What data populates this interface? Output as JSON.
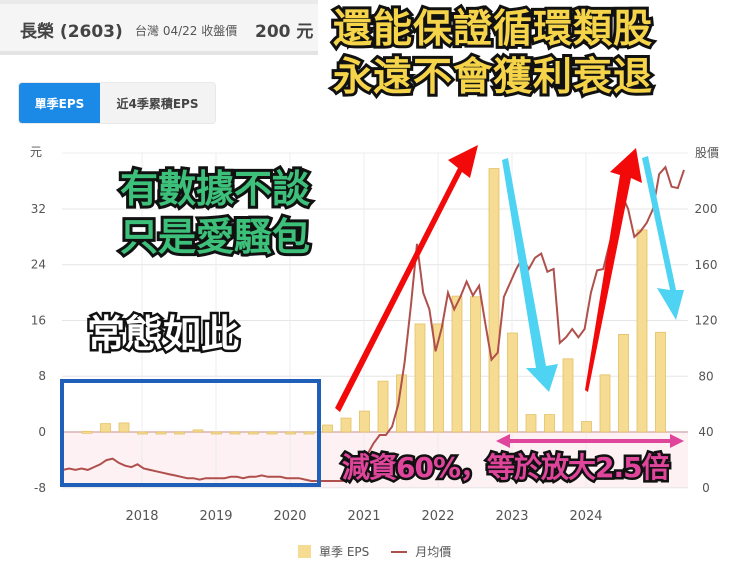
{
  "header": {
    "stock_name": "長榮 (2603)",
    "market_date_label": "台灣 04/22 收盤價",
    "close_price": "200 元"
  },
  "tabs": [
    {
      "label": "單季EPS",
      "active": true
    },
    {
      "label": "近4季累積EPS",
      "active": false
    }
  ],
  "overlays": {
    "headline_line1": "還能保證循環類股",
    "headline_line2": "永遠不會獲利衰退",
    "green_line1": "有數據不談",
    "green_line2": "只是愛騷包",
    "white_text": "常態如此",
    "pink_text": "減資60%，等於放大2.5倍"
  },
  "legend": {
    "eps_label": "單季 EPS",
    "price_label": "月均價"
  },
  "colors": {
    "eps_bar": "#f6dc93",
    "eps_bar_border": "#e3c163",
    "price_line": "#b0504c",
    "tab_active": "#1a8ae6",
    "box_blue": "#1f5fb8",
    "arrow_red": "#f20a0a",
    "arrow_cyan": "#4fd3f2",
    "arrow_pink": "#e0459c",
    "negative_zone": "#fdf1f3"
  },
  "chart_data": {
    "type": "bar",
    "title": "",
    "xlabel": "",
    "ylabel": "元",
    "ylabel_right": "股價",
    "ylim": [
      -8,
      36
    ],
    "ylim_right": [
      0,
      240
    ],
    "yticks": [
      "-8",
      "0",
      "8",
      "16",
      "24",
      "32"
    ],
    "yticks_right": [
      "0",
      "40",
      "80",
      "120",
      "160",
      "200"
    ],
    "xticks": [
      "2018",
      "2019",
      "2020",
      "2021",
      "2022",
      "2023",
      "2024"
    ],
    "grid": true,
    "legend_position": "bottom",
    "series": [
      {
        "name": "單季 EPS",
        "type": "bar",
        "axis": "left",
        "values": [
          0.1,
          1.2,
          1.3,
          -0.1,
          -0.1,
          -0.2,
          0.3,
          -0.1,
          -0.1,
          -0.2,
          -0.1,
          -0.2,
          -0.2,
          1.0,
          2.0,
          3.0,
          7.3,
          8.2,
          15.5,
          15.5,
          19.5,
          19.4,
          37.8,
          14.2,
          2.5,
          2.5,
          10.5,
          1.5,
          8.2,
          14.0,
          29.0,
          14.3
        ]
      },
      {
        "name": "月均價",
        "type": "line",
        "axis": "right",
        "values": [
          13,
          14,
          13,
          14,
          13,
          15,
          17,
          20,
          21,
          18,
          16,
          15,
          17,
          14,
          13,
          12,
          11,
          10,
          9,
          8,
          7,
          7,
          6,
          7,
          7,
          7,
          7,
          8,
          8,
          7,
          8,
          8,
          9,
          8,
          8,
          8,
          7,
          7,
          7,
          6,
          5,
          5,
          5,
          5,
          5,
          5,
          6,
          10,
          15,
          24,
          32,
          38,
          38,
          44,
          60,
          90,
          130,
          175,
          140,
          128,
          98,
          115,
          140,
          128,
          137,
          148,
          138,
          145,
          118,
          92,
          97,
          137,
          147,
          157,
          165,
          157,
          165,
          168,
          155,
          157,
          104,
          108,
          114,
          108,
          114,
          140,
          156,
          157,
          175,
          190,
          210,
          200,
          180,
          184,
          190,
          200,
          225,
          230,
          216,
          215,
          228
        ]
      }
    ],
    "annotations": [
      "blue box around 2017–2020 (EPS near zero, low price)",
      "red up-arrows into 2021–2022 and 2024 peaks",
      "cyan down-arrows after 2022 and late 2024",
      "pink double arrow spanning 2023–2025"
    ]
  }
}
